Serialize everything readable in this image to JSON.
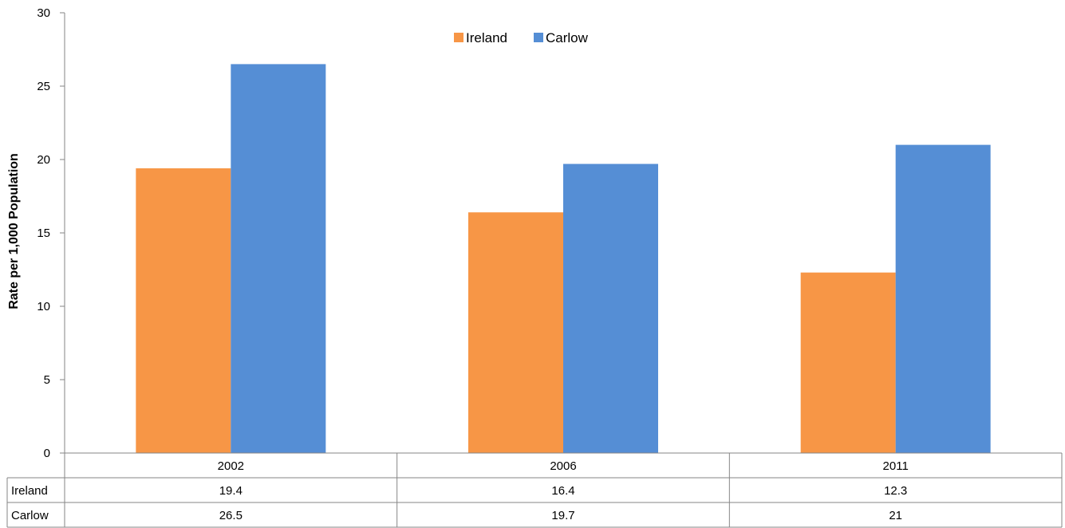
{
  "chart_data": {
    "type": "bar",
    "title": "",
    "xlabel": "",
    "ylabel": "Rate per 1,000 Population",
    "categories": [
      "2002",
      "2006",
      "2011"
    ],
    "series": [
      {
        "name": "Ireland",
        "values": [
          19.4,
          16.4,
          12.3
        ],
        "color": "#F79646",
        "table_values": [
          "19.4",
          "16.4",
          "12.3"
        ]
      },
      {
        "name": "Carlow",
        "values": [
          26.5,
          19.7,
          21
        ],
        "color": "#558ED5",
        "table_values": [
          "26.5",
          "19.7",
          "21"
        ]
      }
    ],
    "ylim": [
      0,
      30
    ],
    "yticks": [
      "0",
      "5",
      "10",
      "15",
      "20",
      "25",
      "30"
    ],
    "grid": false,
    "legend": "top-center",
    "data_table": true
  }
}
